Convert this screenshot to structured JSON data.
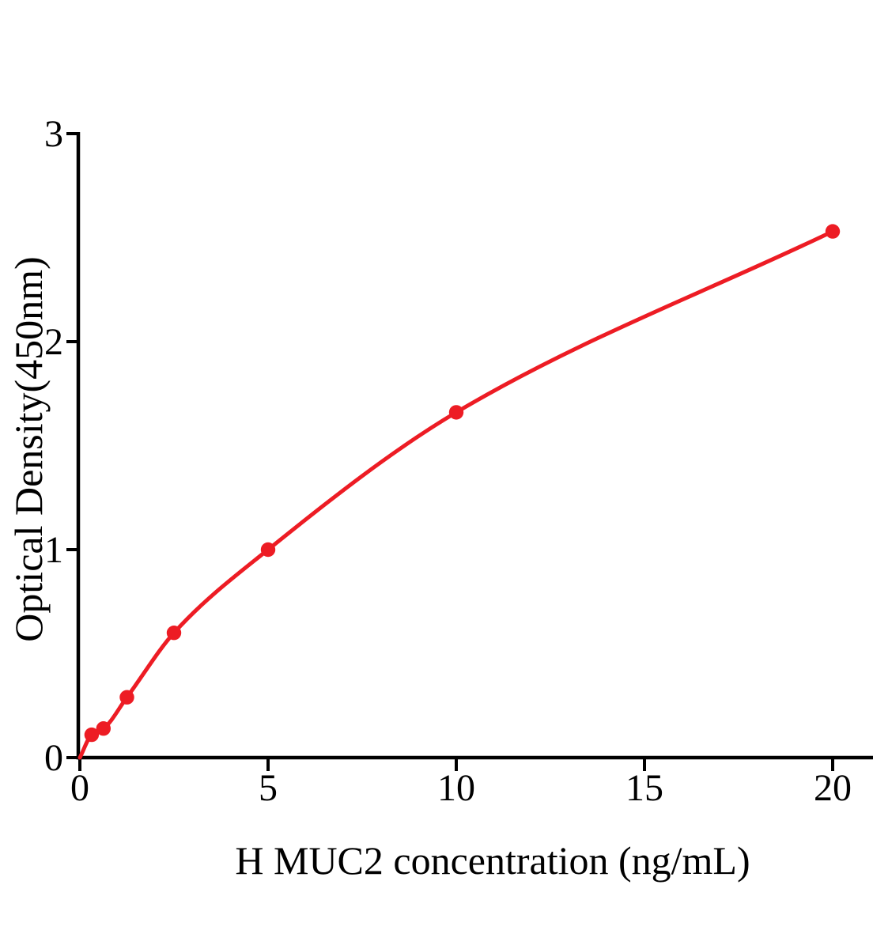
{
  "figure": {
    "background_color": "#ffffff"
  },
  "chart_data": {
    "type": "line",
    "title": "",
    "xlabel": "H MUC2 concentration (ng/mL)",
    "ylabel": "Optical Density(450nm)",
    "x": [
      0.3125,
      0.625,
      1.25,
      2.5,
      5,
      10,
      20
    ],
    "y": [
      0.11,
      0.14,
      0.29,
      0.6,
      1.0,
      1.66,
      2.53
    ],
    "curve_origin": [
      0,
      0
    ],
    "x_ticks": [
      0,
      5,
      10,
      15,
      20
    ],
    "y_ticks": [
      0,
      1,
      2,
      3
    ],
    "xlim": [
      0,
      20
    ],
    "ylim": [
      0,
      3
    ],
    "grid": false,
    "legend": null,
    "series_color": "#ED1C24",
    "axis_color": "#000000",
    "marker": "circle"
  }
}
